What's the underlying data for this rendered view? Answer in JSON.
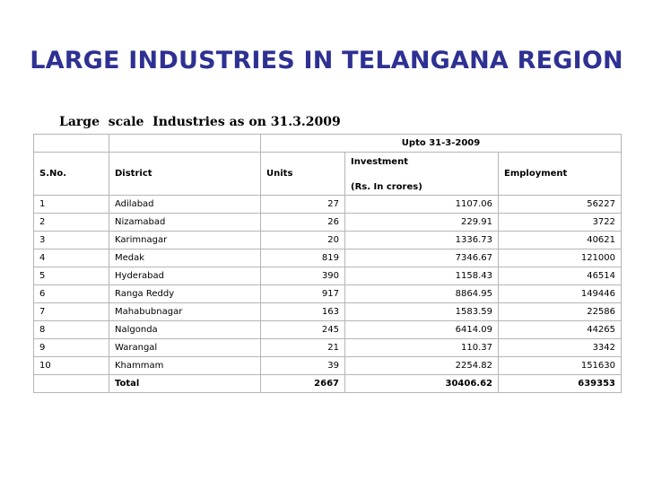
{
  "title": "LARGE INDUSTRIES IN TELANGANA REGION",
  "subtitle": "Large  scale  Industries as on 31.3.2009",
  "table": {
    "period_header": "Upto 31-3-2009",
    "columns": {
      "sno": "S.No.",
      "district": "District",
      "units": "Units",
      "investment": "Investment",
      "investment_unit": "(Rs. In crores)",
      "employment": "Employment"
    },
    "rows": [
      {
        "sno": "1",
        "district": "Adilabad",
        "units": "27",
        "investment": "1107.06",
        "employment": "56227"
      },
      {
        "sno": "2",
        "district": "Nizamabad",
        "units": "26",
        "investment": "229.91",
        "employment": "3722"
      },
      {
        "sno": "3",
        "district": "Karimnagar",
        "units": "20",
        "investment": "1336.73",
        "employment": "40621"
      },
      {
        "sno": "4",
        "district": "Medak",
        "units": "819",
        "investment": "7346.67",
        "employment": "121000"
      },
      {
        "sno": "5",
        "district": "Hyderabad",
        "units": "390",
        "investment": "1158.43",
        "employment": "46514"
      },
      {
        "sno": "6",
        "district": "Ranga Reddy",
        "units": "917",
        "investment": "8864.95",
        "employment": "149446"
      },
      {
        "sno": "7",
        "district": "Mahabubnagar",
        "units": "163",
        "investment": "1583.59",
        "employment": "22586"
      },
      {
        "sno": "8",
        "district": "Nalgonda",
        "units": "245",
        "investment": "6414.09",
        "employment": "44265"
      },
      {
        "sno": "9",
        "district": "Warangal",
        "units": "21",
        "investment": "110.37",
        "employment": "3342"
      },
      {
        "sno": "10",
        "district": "Khammam",
        "units": "39",
        "investment": "2254.82",
        "employment": "151630"
      }
    ],
    "total": {
      "label": "Total",
      "units": "2667",
      "investment": "30406.62",
      "employment": "639353"
    }
  }
}
